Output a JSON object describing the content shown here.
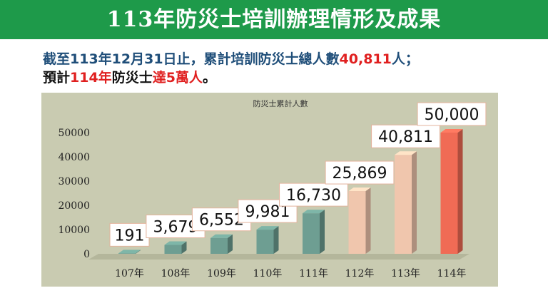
{
  "header": {
    "title": "113年防災士培訓辦理情形及成果"
  },
  "summary": {
    "line1_prefix": "截至113年12月31日止，累計培訓防災士總人數",
    "line1_value": "40,811",
    "line1_suffix": "人；",
    "line2_prefix": "預計",
    "line2_year": "114年",
    "line2_mid": "防災士",
    "line2_goal": "達5萬人",
    "line2_suffix": "。"
  },
  "colors": {
    "title_bg": "#1e9a4a",
    "plot_bg": "#c9cbb1",
    "bar_teal": "#6e9e92",
    "bar_peach": "#f0c6ad",
    "bar_red": "#f06b55",
    "line1_text": "#1f4e79",
    "highlight": "#e02020"
  },
  "chart_data": {
    "type": "bar",
    "title": "防災士累計人數",
    "categories": [
      "107年",
      "108年",
      "109年",
      "110年",
      "111年",
      "112年",
      "113年",
      "114年"
    ],
    "values": [
      191,
      3679,
      6552,
      9981,
      16730,
      25869,
      40811,
      50000
    ],
    "data_labels": [
      "191",
      "3,679",
      "6,552",
      "9,981",
      "16,730",
      "25,869",
      "40,811",
      "50,000"
    ],
    "bar_colors": [
      "teal",
      "teal",
      "teal",
      "teal",
      "teal",
      "peach",
      "peach",
      "red"
    ],
    "yticks": [
      0,
      10000,
      20000,
      30000,
      40000,
      50000
    ],
    "ylim": [
      0,
      50000
    ],
    "grid": false,
    "legend": "none"
  }
}
